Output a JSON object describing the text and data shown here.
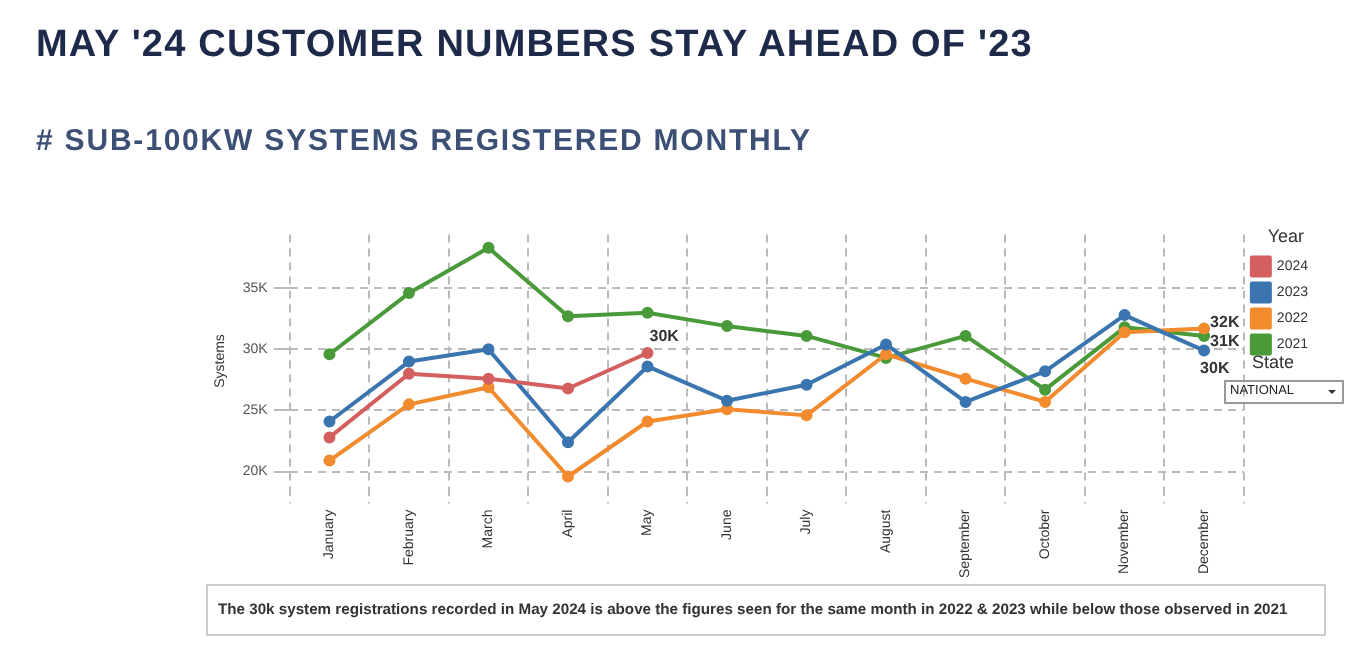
{
  "chart_data": {
    "type": "line",
    "title": "MAY '24 CUSTOMER NUMBERS STAY AHEAD OF '23",
    "subtitle": "# SUB-100KW SYSTEMS REGISTERED MONTHLY",
    "ylabel": "Systems",
    "legend_title": "Year",
    "legend": "right",
    "grid": true,
    "marker": "circle",
    "line_style": "solid",
    "categories": [
      "January",
      "February",
      "March",
      "April",
      "May",
      "June",
      "July",
      "August",
      "September",
      "October",
      "November",
      "December"
    ],
    "ylim": [
      18700,
      39400
    ],
    "yticks": [
      {
        "value": 20000,
        "label": "20K"
      },
      {
        "value": 25000,
        "label": "25K"
      },
      {
        "value": 30000,
        "label": "30K"
      },
      {
        "value": 35000,
        "label": "35K"
      }
    ],
    "series": [
      {
        "name": "2024",
        "color": "#d45f5f",
        "values": [
          22800,
          28000,
          27600,
          26800,
          29700,
          null,
          null,
          null,
          null,
          null,
          null,
          null
        ],
        "value_labels": [
          null,
          null,
          null,
          null,
          "30K",
          null,
          null,
          null,
          null,
          null,
          null,
          null
        ]
      },
      {
        "name": "2023",
        "color": "#3a75b0",
        "values": [
          24100,
          29000,
          30000,
          22400,
          28600,
          25800,
          27100,
          30400,
          25700,
          28200,
          32800,
          29900
        ],
        "value_labels": [
          null,
          null,
          null,
          null,
          null,
          null,
          null,
          null,
          null,
          null,
          null,
          "30K"
        ]
      },
      {
        "name": "2022",
        "color": "#f28a2e",
        "values": [
          20900,
          25500,
          26900,
          19600,
          24100,
          25100,
          24600,
          29600,
          27600,
          25700,
          31400,
          31700
        ],
        "value_labels": [
          null,
          null,
          null,
          null,
          null,
          null,
          null,
          null,
          null,
          null,
          null,
          "32K"
        ]
      },
      {
        "name": "2021",
        "color": "#4a9a3a",
        "values": [
          29600,
          34600,
          38300,
          32700,
          33000,
          31900,
          31100,
          29300,
          31100,
          26700,
          31800,
          31100
        ],
        "value_labels": [
          null,
          null,
          null,
          null,
          null,
          null,
          null,
          null,
          null,
          null,
          null,
          "31K"
        ]
      }
    ],
    "annotations": [
      "State",
      "NATIONAL",
      "The 30k system registrations recorded in May 2024 is above the figures seen for the same month in 2022 & 2023 while below those observed in 2021"
    ]
  }
}
